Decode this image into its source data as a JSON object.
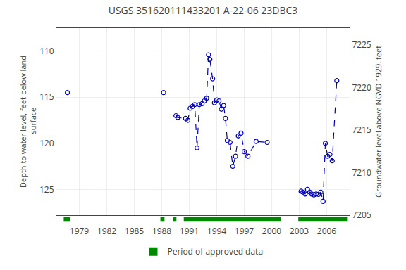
{
  "chart_data": {
    "type": "line",
    "title": "USGS 351620111433201 A-22-06 23DBC3",
    "ylabel": "Depth to water level, feet below land\n surface",
    "y2label": "Groundwater level above NGVD 1929, feet",
    "xlim": [
      1976.5,
      2008.5
    ],
    "xticks": [
      1979,
      1982,
      1985,
      1988,
      1991,
      1994,
      1997,
      2000,
      2003,
      2006
    ],
    "ylim": [
      127.8,
      107.5
    ],
    "yticks": [
      110,
      115,
      120,
      125
    ],
    "y2lim": [
      7205,
      7227
    ],
    "y2ticks": [
      7205,
      7210,
      7215,
      7220,
      7225
    ],
    "grid": true,
    "legend": "bottom",
    "series": [
      {
        "color": "#0000bb",
        "line_style": "dashed",
        "marker": "open circle",
        "x": [
          1977.7
        ],
        "values": [
          114.5
        ]
      },
      {
        "color": "#0000bb",
        "line_style": "dashed",
        "marker": "open circle",
        "x": [
          1988.2
        ],
        "values": [
          114.5
        ]
      },
      {
        "color": "#0000bb",
        "line_style": "dashed",
        "marker": "open circle",
        "x": [
          1989.55,
          1989.75,
          1990.6,
          1990.85,
          1991.1,
          1991.35,
          1991.6,
          1991.85,
          1992.1,
          1992.4,
          1992.65,
          1992.9,
          1993.1,
          1993.25,
          1993.55,
          1993.75,
          1994.0,
          1994.25,
          1994.5,
          1994.75,
          1994.95,
          1995.15,
          1995.45,
          1995.75,
          1996.05,
          1996.35,
          1996.65,
          1997.0,
          1997.4,
          1998.3,
          1999.5
        ],
        "values": [
          117.0,
          117.2,
          117.3,
          117.5,
          116.2,
          116.0,
          115.8,
          120.5,
          115.8,
          115.7,
          115.4,
          115.1,
          110.4,
          110.9,
          113.0,
          115.6,
          115.3,
          115.4,
          116.3,
          115.9,
          117.3,
          119.7,
          119.9,
          122.5,
          121.4,
          119.2,
          118.9,
          120.9,
          121.4,
          119.8,
          119.9
        ]
      },
      {
        "color": "#0000bb",
        "line_style": "dashed",
        "marker": "open circle",
        "x": [
          2003.2,
          2003.4,
          2003.65,
          2003.9,
          2004.15,
          2004.35,
          2004.6,
          2004.85,
          2005.1,
          2005.35,
          2005.6,
          2005.85,
          2006.1,
          2006.35,
          2006.6,
          2007.1
        ],
        "values": [
          125.2,
          125.3,
          125.5,
          125.0,
          125.3,
          125.5,
          125.6,
          125.5,
          125.55,
          125.3,
          126.3,
          120.0,
          121.4,
          121.2,
          121.9,
          113.2
        ]
      }
    ],
    "periods": {
      "name": "Period of approved data",
      "color": "#008800",
      "ranges": [
        [
          1977.3,
          1978.0
        ],
        [
          1987.85,
          1988.3
        ],
        [
          1989.25,
          1989.6
        ],
        [
          1990.4,
          2001.0
        ],
        [
          2002.9,
          2008.3
        ]
      ]
    }
  }
}
